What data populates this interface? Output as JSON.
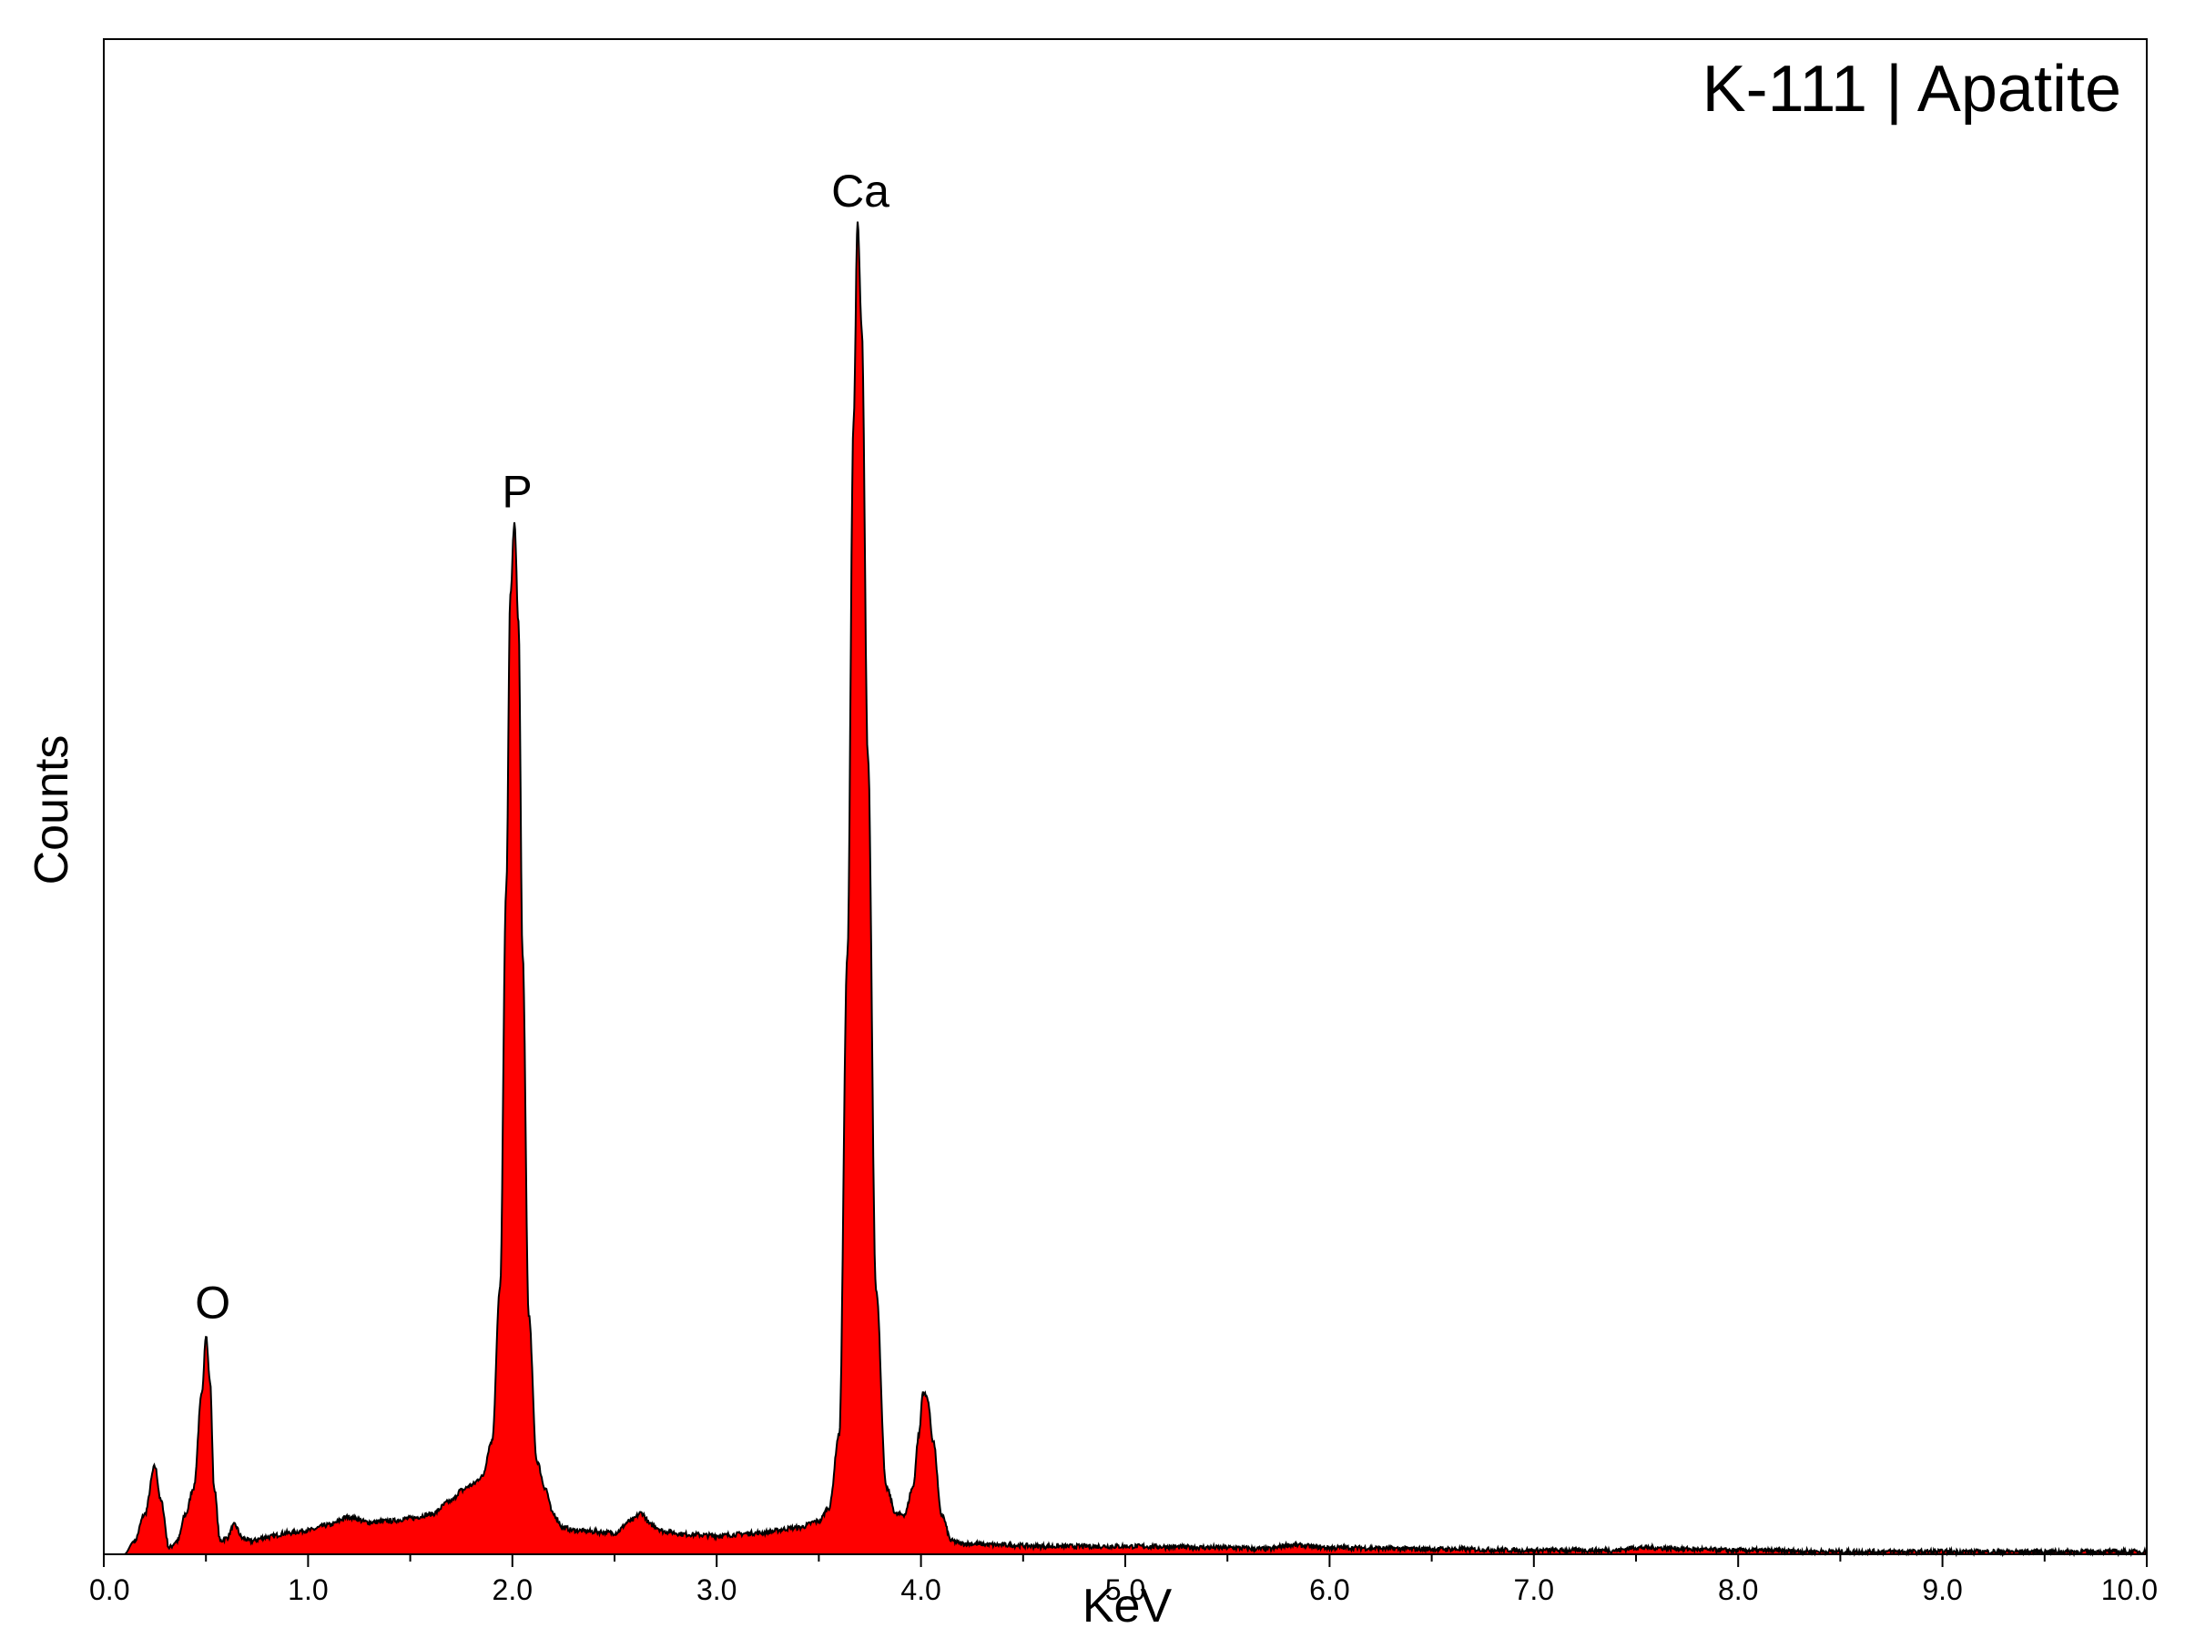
{
  "chart_data": {
    "type": "area",
    "title": "K-111 | Apatite",
    "xlabel": "KeV",
    "ylabel": "Counts",
    "xlim": [
      0.0,
      10.0
    ],
    "ylim": [
      0,
      1.0
    ],
    "y_ticks_labeled": false,
    "x_tick_labels": [
      "0.0",
      "1.0",
      "2.0",
      "3.0",
      "4.0",
      "5.0",
      "6.0",
      "7.0",
      "8.0",
      "9.0",
      "10.0"
    ],
    "x_tick_values": [
      0,
      1,
      2,
      3,
      4,
      5,
      6,
      7,
      8,
      9,
      10
    ],
    "fill_color": "#ff0000",
    "line_color": "#000000",
    "peaks": [
      {
        "label": "O",
        "x": 0.52,
        "y": 0.165
      },
      {
        "label": "P",
        "x": 2.01,
        "y": 0.774
      },
      {
        "label": "Ca",
        "x": 3.69,
        "y": 1.0
      }
    ],
    "series": [
      {
        "x": [
          0.0,
          0.05,
          0.1,
          0.15,
          0.2,
          0.25,
          0.28,
          0.32,
          0.36,
          0.4,
          0.44,
          0.48,
          0.5,
          0.52,
          0.54,
          0.57,
          0.6,
          0.64,
          0.68,
          0.72,
          0.8,
          0.9,
          1.0,
          1.1,
          1.2,
          1.3,
          1.4,
          1.5,
          1.6,
          1.7,
          1.75,
          1.8,
          1.85,
          1.9,
          1.94,
          1.97,
          1.99,
          2.01,
          2.03,
          2.05,
          2.08,
          2.12,
          2.16,
          2.2,
          2.25,
          2.3,
          2.4,
          2.5,
          2.58,
          2.63,
          2.68,
          2.75,
          2.85,
          3.0,
          3.2,
          3.4,
          3.5,
          3.55,
          3.6,
          3.64,
          3.67,
          3.69,
          3.71,
          3.74,
          3.78,
          3.83,
          3.88,
          3.92,
          3.96,
          3.99,
          4.01,
          4.03,
          4.06,
          4.1,
          4.15,
          4.2,
          4.4,
          4.6,
          5.0,
          5.5,
          5.7,
          5.8,
          6.0,
          6.5,
          7.0,
          7.4,
          7.5,
          8.0,
          8.5,
          9.0,
          9.5,
          10.0
        ],
        "y": [
          0,
          0,
          0,
          0.01,
          0.03,
          0.066,
          0.04,
          0.005,
          0.01,
          0.03,
          0.05,
          0.12,
          0.165,
          0.13,
          0.05,
          0.01,
          0.012,
          0.022,
          0.012,
          0.01,
          0.013,
          0.016,
          0.018,
          0.022,
          0.028,
          0.024,
          0.025,
          0.027,
          0.03,
          0.04,
          0.048,
          0.052,
          0.058,
          0.085,
          0.2,
          0.5,
          0.72,
          0.774,
          0.7,
          0.45,
          0.18,
          0.07,
          0.05,
          0.03,
          0.02,
          0.018,
          0.017,
          0.016,
          0.025,
          0.031,
          0.022,
          0.017,
          0.015,
          0.014,
          0.016,
          0.02,
          0.025,
          0.035,
          0.09,
          0.45,
          0.85,
          1.0,
          0.92,
          0.6,
          0.2,
          0.05,
          0.03,
          0.03,
          0.05,
          0.09,
          0.122,
          0.118,
          0.085,
          0.03,
          0.01,
          0.008,
          0.007,
          0.006,
          0.006,
          0.005,
          0.004,
          0.007,
          0.005,
          0.004,
          0.003,
          0.003,
          0.005,
          0.003,
          0.002,
          0.002,
          0.002,
          0.002
        ]
      }
    ]
  }
}
